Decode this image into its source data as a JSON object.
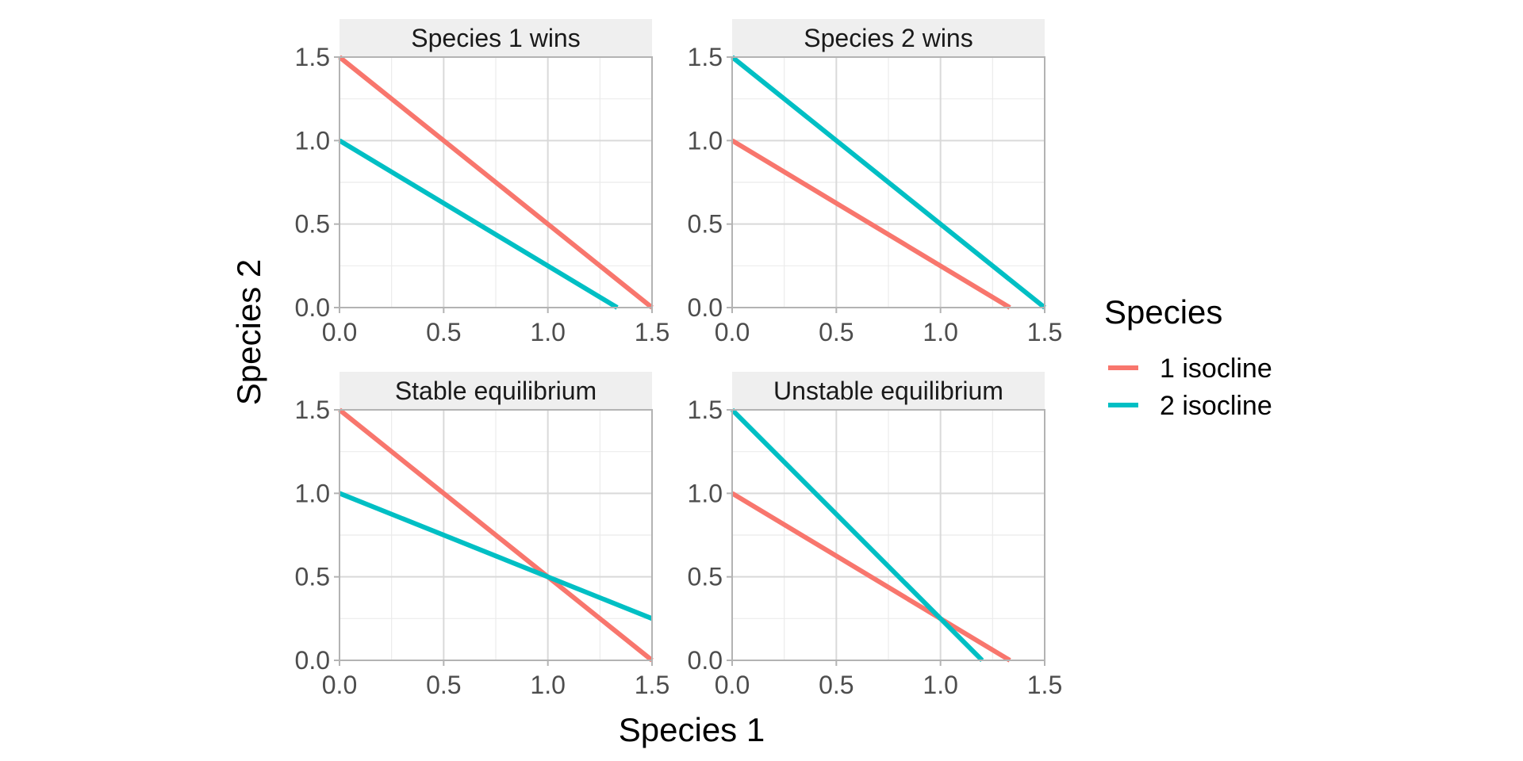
{
  "chart_data": {
    "type": "line",
    "xlabel": "Species 1",
    "ylabel": "Species 2",
    "xlim": [
      0,
      1.5
    ],
    "ylim": [
      0,
      1.5
    ],
    "x_ticks": [
      "0.0",
      "0.5",
      "1.0",
      "1.5"
    ],
    "y_ticks": [
      "0.0",
      "0.5",
      "1.0",
      "1.5"
    ],
    "grid": true,
    "legend": {
      "title": "Species",
      "placement": "right",
      "entries": [
        {
          "label": "1 isocline",
          "color": "#F8766D"
        },
        {
          "label": "2 isocline",
          "color": "#00BFC4"
        }
      ]
    },
    "panels": [
      {
        "title": "Species 1 wins",
        "series": [
          {
            "name": "1 isocline",
            "color": "#F8766D",
            "x": [
              0,
              1.5
            ],
            "y": [
              1.5,
              0
            ]
          },
          {
            "name": "2 isocline",
            "color": "#00BFC4",
            "x": [
              0,
              1.333
            ],
            "y": [
              1.0,
              0
            ]
          }
        ]
      },
      {
        "title": "Species 2 wins",
        "series": [
          {
            "name": "1 isocline",
            "color": "#F8766D",
            "x": [
              0,
              1.333
            ],
            "y": [
              1.0,
              0
            ]
          },
          {
            "name": "2 isocline",
            "color": "#00BFC4",
            "x": [
              0,
              1.5
            ],
            "y": [
              1.5,
              0
            ]
          }
        ]
      },
      {
        "title": "Stable equilibrium",
        "series": [
          {
            "name": "1 isocline",
            "color": "#F8766D",
            "x": [
              0,
              1.5
            ],
            "y": [
              1.5,
              0
            ]
          },
          {
            "name": "2 isocline",
            "color": "#00BFC4",
            "x": [
              0,
              1.5
            ],
            "y": [
              1.0,
              0.25
            ]
          }
        ]
      },
      {
        "title": "Unstable equilibrium",
        "series": [
          {
            "name": "1 isocline",
            "color": "#F8766D",
            "x": [
              0,
              1.333
            ],
            "y": [
              1.0,
              0
            ]
          },
          {
            "name": "2 isocline",
            "color": "#00BFC4",
            "x": [
              0,
              1.2
            ],
            "y": [
              1.5,
              0
            ]
          }
        ]
      }
    ]
  }
}
